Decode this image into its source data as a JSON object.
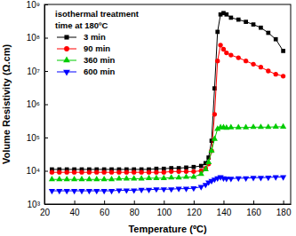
{
  "chart_data": {
    "type": "line",
    "x_label": "Temperature (ºC)",
    "y_label": "Volume Resistivity (Ω.cm)",
    "annotations": [
      "isothermal treatment",
      "time at 180ºC"
    ],
    "log": "y",
    "legend": "upper left",
    "xlim": [
      20,
      185
    ],
    "ylim": [
      1000,
      1000000000
    ],
    "xticks": [
      20,
      40,
      60,
      80,
      100,
      120,
      140,
      160,
      180
    ],
    "yticks": [
      {
        "value": 1000,
        "label": "10³"
      },
      {
        "value": 10000,
        "label": "10⁴"
      },
      {
        "value": 100000,
        "label": "10⁵"
      },
      {
        "value": 1000000,
        "label": "10⁶"
      },
      {
        "value": 10000000,
        "label": "10⁷"
      },
      {
        "value": 100000000,
        "label": "10⁸"
      },
      {
        "value": 1000000000,
        "label": "10⁹"
      }
    ],
    "x": [
      25,
      30,
      35,
      40,
      45,
      50,
      55,
      60,
      65,
      70,
      75,
      80,
      85,
      90,
      95,
      100,
      105,
      110,
      115,
      120,
      125,
      128,
      130,
      132,
      134,
      136,
      138,
      140,
      142,
      145,
      150,
      155,
      160,
      165,
      170,
      175,
      180
    ],
    "series": [
      {
        "name": "3 min",
        "color": "#000000",
        "marker": "square",
        "line_style": "solid",
        "values": [
          11000,
          11000,
          11000,
          11000,
          11000,
          11000,
          11000,
          11000,
          11000,
          11000,
          11000,
          11000,
          11000,
          11000,
          11500,
          11500,
          12000,
          12000,
          12500,
          13000,
          14000,
          17000,
          25000,
          80000,
          3000000,
          150000000,
          500000000,
          550000000,
          500000000,
          400000000,
          350000000,
          300000000,
          250000000,
          200000000,
          140000000,
          90000000,
          40000000
        ]
      },
      {
        "name": "90 min",
        "color": "#ff0000",
        "marker": "circle",
        "line_style": "solid",
        "values": [
          9000,
          9000,
          9000,
          9000,
          9000,
          9000,
          9000,
          9000,
          9000,
          9000,
          9000,
          9000,
          9000,
          9000,
          9000,
          9000,
          9500,
          9500,
          9500,
          9500,
          10000,
          12000,
          16000,
          40000,
          500000,
          20000000,
          60000000,
          45000000,
          35000000,
          30000000,
          25000000,
          20000000,
          16000000,
          13000000,
          10000000,
          8000000,
          7000000
        ]
      },
      {
        "name": "360 min",
        "color": "#00cc00",
        "marker": "triangle",
        "line_style": "solid",
        "values": [
          5500,
          5500,
          5500,
          5500,
          5500,
          5500,
          5500,
          5500,
          5500,
          5800,
          5800,
          5800,
          5800,
          6000,
          6000,
          6000,
          6200,
          6200,
          6500,
          6500,
          8000,
          11000,
          18000,
          40000,
          90000,
          180000,
          200000,
          200000,
          195000,
          200000,
          200000,
          200000,
          205000,
          205000,
          205000,
          210000,
          210000
        ]
      },
      {
        "name": "600 min",
        "color": "#0000ff",
        "marker": "triangle-down",
        "line_style": "solid",
        "values": [
          2500,
          2500,
          2500,
          2500,
          2500,
          2500,
          2500,
          2500,
          2500,
          2600,
          2600,
          2600,
          2700,
          2700,
          2800,
          2800,
          2800,
          2900,
          2900,
          3000,
          3300,
          3800,
          4500,
          5000,
          5500,
          6000,
          6500,
          6000,
          5800,
          5800,
          6000,
          6000,
          6200,
          6200,
          6300,
          6500,
          6500
        ]
      }
    ]
  }
}
